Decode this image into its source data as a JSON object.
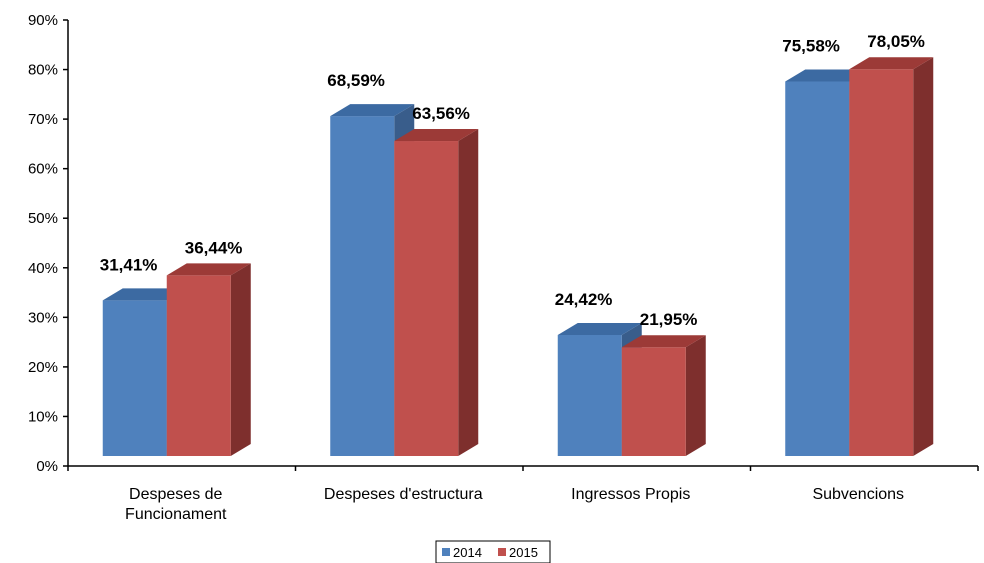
{
  "chart_data": {
    "type": "bar",
    "categories": [
      "Despeses de\nFuncionament",
      "Despeses d'estructura",
      "Ingressos Propis",
      "Subvencions"
    ],
    "series": [
      {
        "name": "2014",
        "values": [
          31.41,
          68.59,
          24.42,
          75.58
        ],
        "labels": [
          "31,41%",
          "68,59%",
          "24,42%",
          "75,58%"
        ],
        "color": "#4f81bd",
        "top_color": "#3c6aa2",
        "side_color": "#395d8b"
      },
      {
        "name": "2015",
        "values": [
          36.44,
          63.56,
          21.95,
          78.05
        ],
        "labels": [
          "36,44%",
          "63,56%",
          "21,95%",
          "78,05%"
        ],
        "color": "#c0504d",
        "top_color": "#9c3a37",
        "side_color": "#7e2f2d"
      }
    ],
    "y_ticks": [
      "0%",
      "10%",
      "20%",
      "30%",
      "40%",
      "50%",
      "60%",
      "70%",
      "80%",
      "90%"
    ],
    "ylim": [
      0,
      90
    ],
    "title": "",
    "xlabel": "",
    "ylabel": "",
    "grid": false,
    "legend_position": "bottom"
  }
}
